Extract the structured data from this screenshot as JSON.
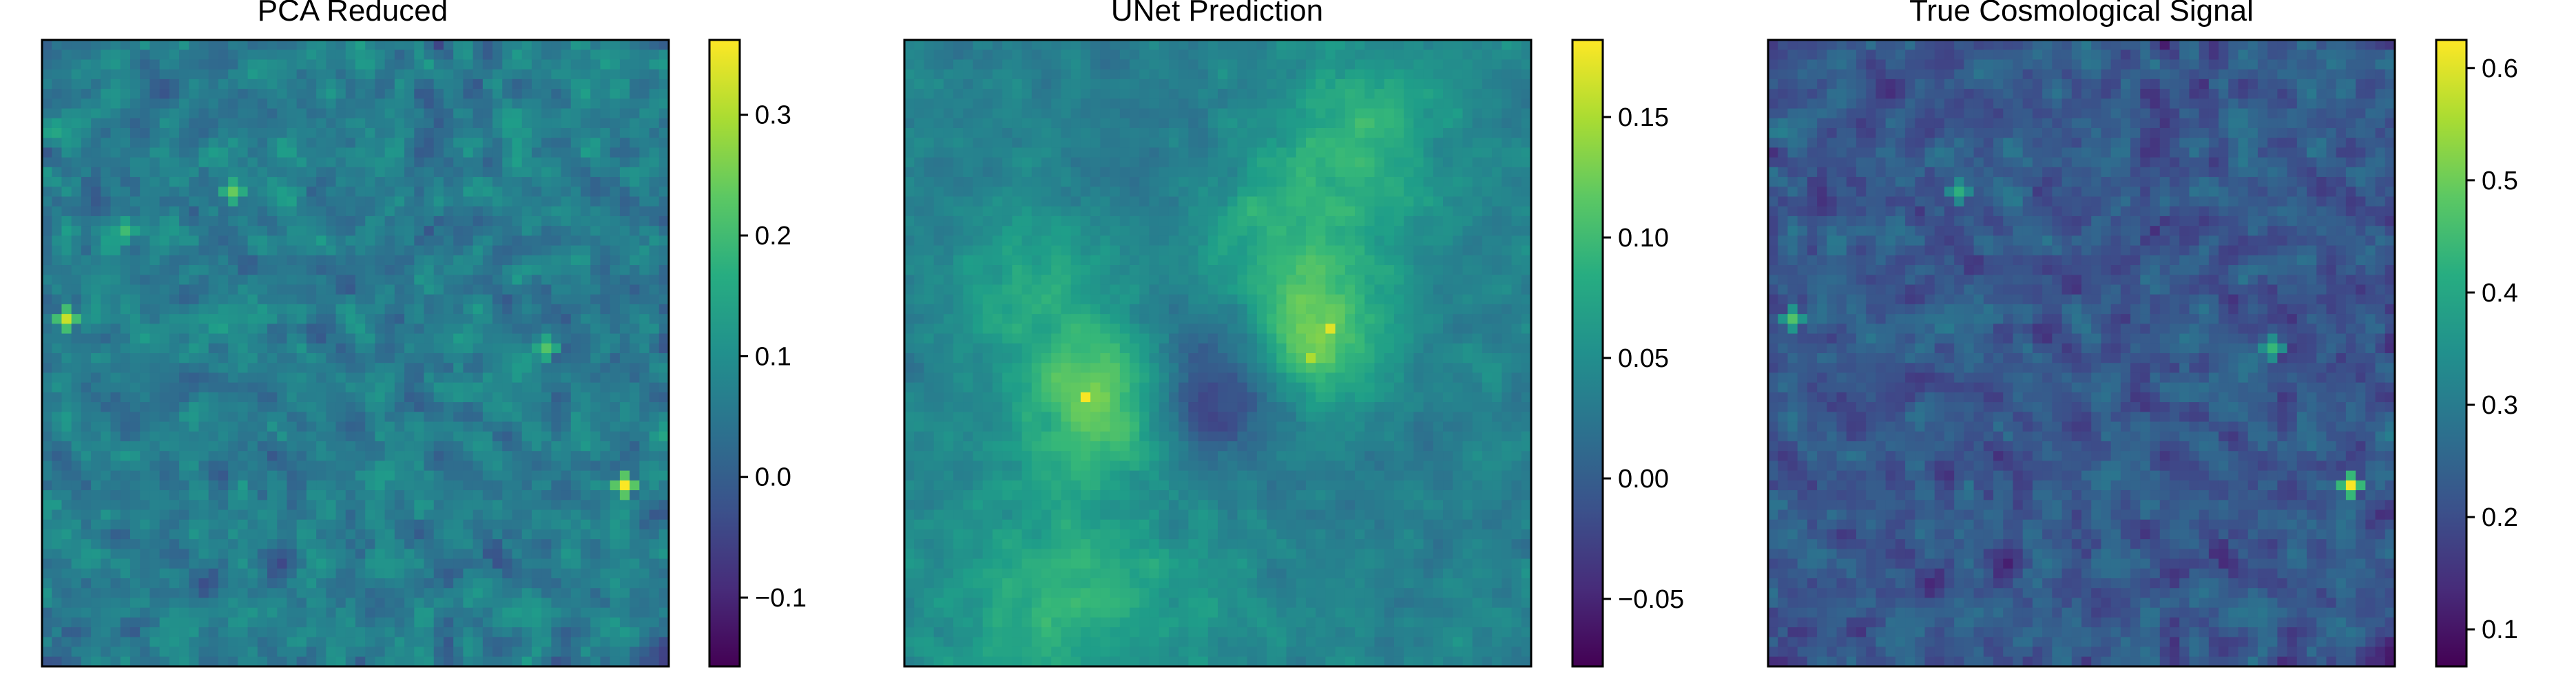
{
  "chart_data": [
    {
      "type": "heatmap",
      "title": "PCA Reduced",
      "grid_size": 64,
      "colormap": "viridis",
      "colorbar": {
        "vmin": -0.157,
        "vmax": 0.362,
        "ticks": [
          -0.1,
          0.0,
          0.1,
          0.2,
          0.3
        ],
        "tick_labels": [
          "−0.1",
          "0.0",
          "0.1",
          "0.2",
          "0.3"
        ]
      },
      "value_stats": {
        "mean": 0.06,
        "spread": 0.07
      },
      "hotspots": [
        {
          "row": 28,
          "col": 2,
          "value": 0.32
        },
        {
          "row": 45,
          "col": 59,
          "value": 0.36
        },
        {
          "row": 31,
          "col": 51,
          "value": 0.22
        },
        {
          "row": 15,
          "col": 19,
          "value": 0.24
        },
        {
          "row": 19,
          "col": 8,
          "value": 0.2
        }
      ],
      "smooth_fields": [],
      "seed": 11
    },
    {
      "type": "heatmap",
      "title": "UNet Prediction",
      "grid_size": 64,
      "colormap": "viridis",
      "colorbar": {
        "vmin": -0.078,
        "vmax": 0.182,
        "ticks": [
          -0.05,
          0.0,
          0.05,
          0.1,
          0.15
        ],
        "tick_labels": [
          "−0.05",
          "0.00",
          "0.05",
          "0.10",
          "0.15"
        ]
      },
      "value_stats": {
        "mean": 0.04,
        "spread": 0.018
      },
      "hotspots": [
        {
          "row": 36,
          "col": 18,
          "value": 0.18
        },
        {
          "row": 29,
          "col": 43,
          "value": 0.17
        },
        {
          "row": 32,
          "col": 41,
          "value": 0.15
        }
      ],
      "smooth_fields": [
        {
          "row": 36,
          "col": 19,
          "radius": 5,
          "amplitude": 0.09
        },
        {
          "row": 30,
          "col": 42,
          "radius": 5,
          "amplitude": 0.08
        },
        {
          "row": 19,
          "col": 37,
          "radius": 7,
          "amplitude": 0.05
        },
        {
          "row": 9,
          "col": 46,
          "radius": 6,
          "amplitude": 0.045
        },
        {
          "row": 56,
          "col": 16,
          "radius": 8,
          "amplitude": 0.05
        },
        {
          "row": 24,
          "col": 13,
          "radius": 5,
          "amplitude": 0.04
        },
        {
          "row": 35,
          "col": 31,
          "radius": 5,
          "amplitude": -0.07
        },
        {
          "row": 12,
          "col": 28,
          "radius": 9,
          "amplitude": -0.02
        },
        {
          "row": 44,
          "col": 51,
          "radius": 8,
          "amplitude": -0.01
        }
      ],
      "seed": 23
    },
    {
      "type": "heatmap",
      "title": "True Cosmological Signal",
      "grid_size": 64,
      "colormap": "viridis",
      "colorbar": {
        "vmin": 0.067,
        "vmax": 0.625,
        "ticks": [
          0.1,
          0.2,
          0.3,
          0.4,
          0.5,
          0.6
        ],
        "tick_labels": [
          "0.1",
          "0.2",
          "0.3",
          "0.4",
          "0.5",
          "0.6"
        ]
      },
      "value_stats": {
        "mean": 0.22,
        "spread": 0.07
      },
      "hotspots": [
        {
          "row": 45,
          "col": 59,
          "value": 0.62
        },
        {
          "row": 28,
          "col": 2,
          "value": 0.47
        },
        {
          "row": 31,
          "col": 51,
          "value": 0.44
        },
        {
          "row": 15,
          "col": 19,
          "value": 0.42
        }
      ],
      "smooth_fields": [],
      "seed": 11
    }
  ]
}
